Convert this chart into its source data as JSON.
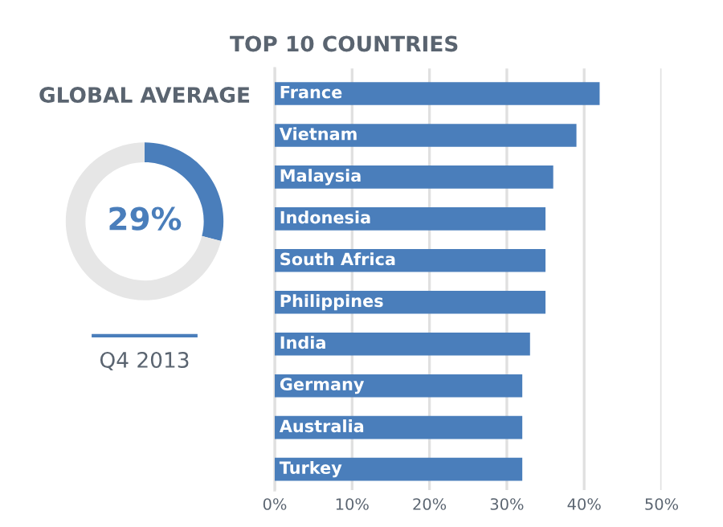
{
  "chart_data": [
    {
      "type": "donut",
      "title": "GLOBAL AVERAGE",
      "subtitle": "Q4 2013",
      "categories": [
        null,
        null
      ],
      "values": [
        29,
        71
      ],
      "colors": [
        "#4a7ebb",
        "#e6e6e6"
      ],
      "value_labels": [
        "29%",
        null
      ]
    },
    {
      "type": "bar",
      "orientation": "horizontal",
      "title": "TOP 10 COUNTRIES",
      "categories": [
        "France",
        "Vietnam",
        "Malaysia",
        "Indonesia",
        "South Africa",
        "Philippines",
        "India",
        "Germany",
        "Australia",
        "Turkey"
      ],
      "values": [
        42,
        39,
        36,
        35,
        35,
        35,
        33,
        32,
        32,
        32
      ],
      "color": "#4a7ebb",
      "xlim": [
        0,
        50
      ],
      "xticks": [
        {
          "value": 0,
          "label": "0%"
        },
        {
          "value": 10,
          "label": "10%"
        },
        {
          "value": 20,
          "label": "20%"
        },
        {
          "value": 30,
          "label": "30%"
        },
        {
          "value": 40,
          "label": "40%"
        },
        {
          "value": 50,
          "label": "50%"
        }
      ],
      "grid": "x",
      "tick_labels": "x"
    }
  ]
}
